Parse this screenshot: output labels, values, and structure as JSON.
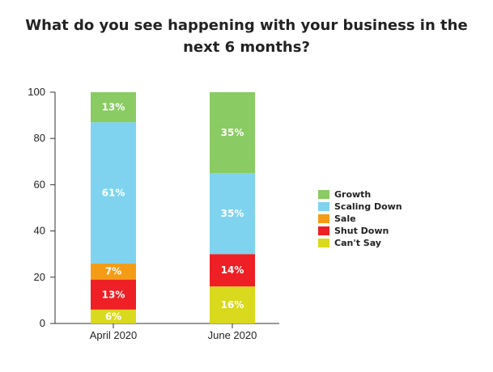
{
  "chart_data": {
    "type": "bar",
    "stacked": true,
    "title_lines": [
      "What do you see happening with your business in the",
      "next 6 months?"
    ],
    "categories": [
      "April 2020",
      "June 2020"
    ],
    "ylim": [
      0,
      100
    ],
    "yticks": [
      "0",
      "20",
      "40",
      "60",
      "80",
      "100"
    ],
    "series": [
      {
        "name": "Can't Say",
        "color": "#d9d91e",
        "values": [
          6,
          16
        ],
        "labels": [
          "6%",
          "16%"
        ]
      },
      {
        "name": "Shut Down",
        "color": "#ee2025",
        "values": [
          13,
          14
        ],
        "labels": [
          "13%",
          "14%"
        ]
      },
      {
        "name": "Sale",
        "color": "#f59c16",
        "values": [
          7,
          0
        ],
        "labels": [
          "7%",
          ""
        ]
      },
      {
        "name": "Scaling Down",
        "color": "#7fd3ee",
        "values": [
          61,
          35
        ],
        "labels": [
          "61%",
          "35%"
        ]
      },
      {
        "name": "Growth",
        "color": "#8acb64",
        "values": [
          13,
          35
        ],
        "labels": [
          "13%",
          "35%"
        ]
      }
    ],
    "legend": [
      "Growth",
      "Scaling Down",
      "Sale",
      "Shut Down",
      "Can't Say"
    ],
    "legend_position": "right",
    "grid": false
  }
}
